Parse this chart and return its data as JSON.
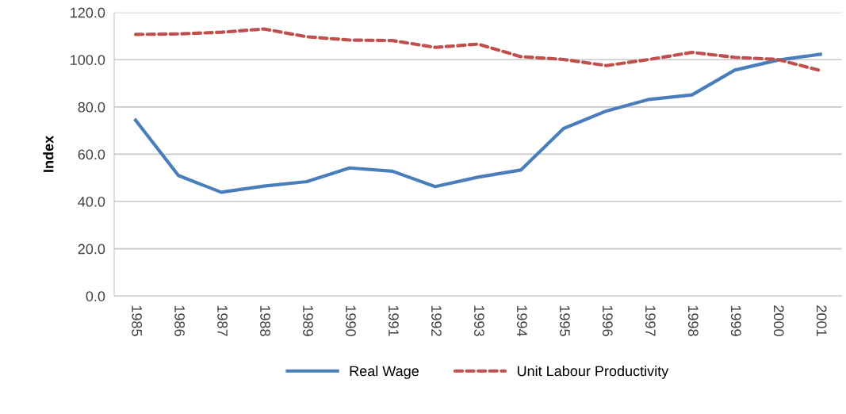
{
  "chart_data": {
    "type": "line",
    "ylabel": "Index",
    "categories": [
      "1985",
      "1986",
      "1987",
      "1988",
      "1989",
      "1990",
      "1991",
      "1992",
      "1993",
      "1994",
      "1995",
      "1996",
      "1997",
      "1998",
      "1999",
      "2000",
      "2001"
    ],
    "series": [
      {
        "name": "Real Wage",
        "color": "#4a7ebb",
        "line_style": "solid",
        "values": [
          74.4,
          51,
          43.9,
          46.5,
          48.4,
          54.2,
          52.8,
          46.3,
          50.3,
          53.3,
          70.9,
          78.3,
          83.2,
          85.1,
          95.6,
          99.8,
          102.3
        ]
      },
      {
        "name": "Unit Labour Productivity",
        "color": "#c0504d",
        "line_style": "dashed",
        "values": [
          110.7,
          110.9,
          111.6,
          113,
          109.7,
          108.3,
          108.1,
          105.2,
          106.6,
          101.3,
          100.1,
          97.5,
          100.1,
          103.1,
          101,
          100.1,
          95.4
        ]
      }
    ],
    "ylim": [
      0,
      120
    ],
    "yticks": [
      {
        "value": 0,
        "label": "0.0"
      },
      {
        "value": 20,
        "label": "20.0"
      },
      {
        "value": 40,
        "label": "40.0"
      },
      {
        "value": 60,
        "label": "60.0"
      },
      {
        "value": 80,
        "label": "80.0"
      },
      {
        "value": 100,
        "label": "100.0"
      },
      {
        "value": 120,
        "label": "120.0"
      }
    ],
    "grid": "y",
    "legend": "bottom",
    "marker": "none"
  }
}
